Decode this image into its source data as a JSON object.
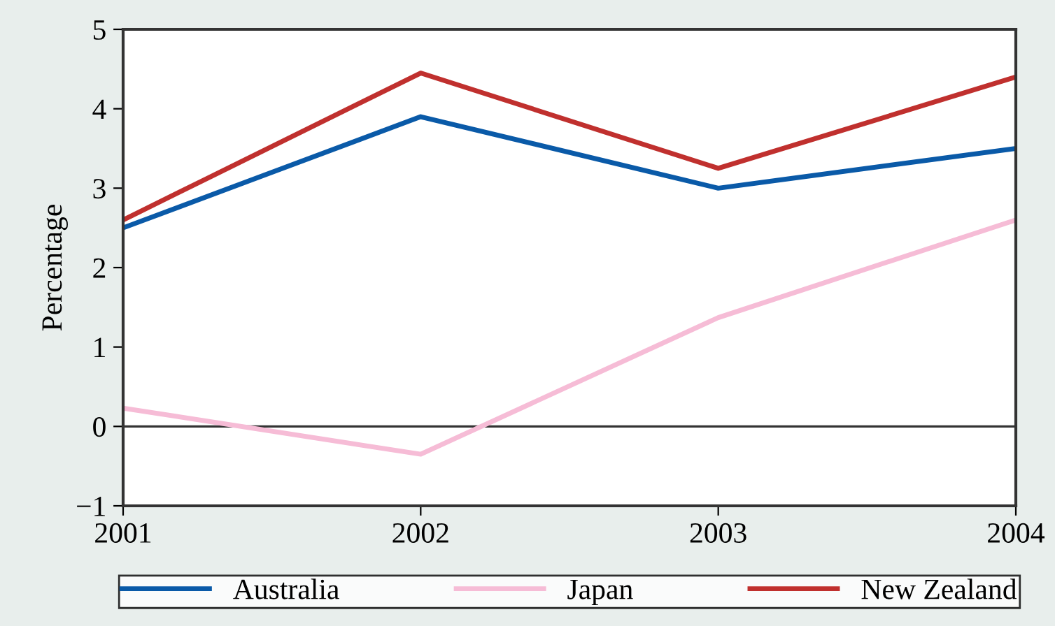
{
  "chart_data": {
    "type": "line",
    "ylabel": "Percentage",
    "x": [
      2001,
      2002,
      2003,
      2004
    ],
    "xlim": [
      2001,
      2004
    ],
    "xticks": [
      2001,
      2002,
      2003,
      2004
    ],
    "ylim": [
      -1,
      5
    ],
    "yticks": [
      {
        "value": -1,
        "label": "−1"
      },
      0,
      1,
      2,
      3,
      4,
      5
    ],
    "ref_lines": [
      {
        "axis": "y",
        "value": 0,
        "color": "#333333"
      }
    ],
    "grid": false,
    "legend": "bottom",
    "marker": "none",
    "line_style": "solid",
    "series": [
      {
        "name": "Australia",
        "color": "#0a5aa8",
        "values": [
          2.5,
          3.9,
          3.0,
          3.5
        ]
      },
      {
        "name": "Japan",
        "color": "#f6bcd6",
        "values": [
          0.23,
          -0.35,
          1.37,
          2.6
        ]
      },
      {
        "name": "New Zealand",
        "color": "#c0302e",
        "values": [
          2.6,
          4.45,
          3.25,
          4.4
        ]
      }
    ]
  }
}
